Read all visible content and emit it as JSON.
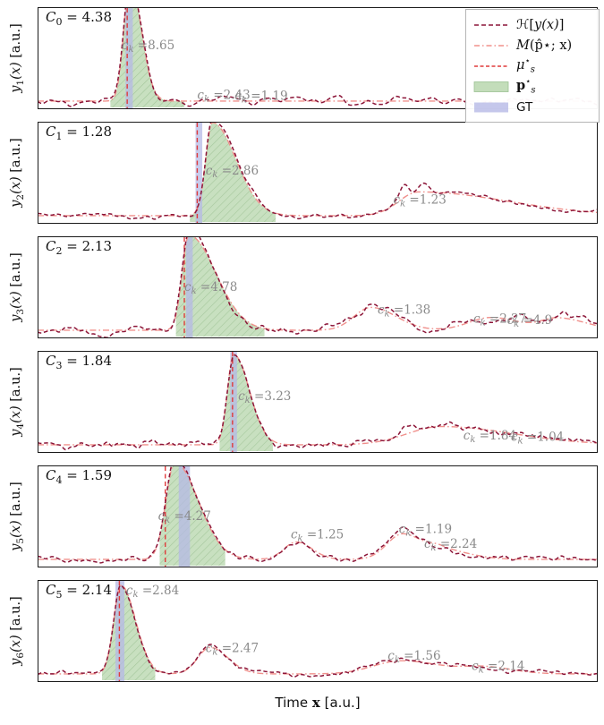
{
  "figure": {
    "xlabel": {
      "pre": "Time ",
      "var": "x",
      "post": " [a.u.]"
    }
  },
  "colors": {
    "signal": "#8c1538",
    "model": "#f0908c",
    "mu": "#e03b3b",
    "region_fill": "#b9d7ae",
    "region_hatch": "#9cc193",
    "gt": "#b6b9e6",
    "annotation": "#8a8a8a",
    "frame": "#1a1a1a",
    "legend_border": "#b5b5b5"
  },
  "legend": {
    "items": [
      {
        "name": "signal",
        "pre": "ℋ[",
        "var": "y(x)",
        "post": "]"
      },
      {
        "name": "model",
        "var": "M",
        "rest": "(p̂⋆; x)"
      },
      {
        "name": "mu",
        "base": "μ",
        "sup": "⋆",
        "sub": "s"
      },
      {
        "name": "region",
        "base": "p",
        "sup": "⋆",
        "sub": "s"
      },
      {
        "name": "gt",
        "label": "GT"
      }
    ]
  },
  "chart_data": {
    "type": "line",
    "x_range": [
      0,
      1
    ],
    "grid": false,
    "panels": [
      {
        "ylabel": "y1(x) [a.u.]",
        "ylabel_parts": {
          "var": "y",
          "sub": "1",
          "args": "(x)",
          "unit": " [a.u.]"
        },
        "constant_label": "C0 = 4.38",
        "clabel_parts": {
          "var": "C",
          "sub": "0",
          "value": " = 4.38"
        },
        "baseline": 0.03,
        "peaks": [
          {
            "c": 0.165,
            "h": 1.32,
            "wl": 0.011,
            "wr": 0.02
          }
        ],
        "extra": [
          {
            "c": 0.332,
            "h": 0.045,
            "wl": 0.012,
            "wr": 0.012
          },
          {
            "c": 0.405,
            "h": 0.03,
            "wl": 0.01,
            "wr": 0.01
          },
          {
            "c": 0.455,
            "h": 0.038,
            "wl": 0.009,
            "wr": 0.009
          },
          {
            "c": 0.53,
            "h": 0.03,
            "wl": 0.01,
            "wr": 0.01
          }
        ],
        "noise": {
          "seed": 11,
          "amp": 0.018
        },
        "region": [
          0.13,
          0.262
        ],
        "gt": [
          0.157,
          0.17
        ],
        "mu": 0.16,
        "annotations": [
          {
            "x": 0.15,
            "y": 0.6,
            "text": "=8.65"
          },
          {
            "x": 0.285,
            "y": 0.055,
            "text": "=2.43"
          },
          {
            "x": 0.352,
            "y": 0.045,
            "text": "=1.19"
          }
        ]
      },
      {
        "ylabel": "y2(x) [a.u.]",
        "ylabel_parts": {
          "var": "y",
          "sub": "2",
          "args": "(x)",
          "unit": " [a.u.]"
        },
        "constant_label": "C1 = 1.28",
        "clabel_parts": {
          "var": "C",
          "sub": "1",
          "value": " = 1.28"
        },
        "baseline": 0.03,
        "peaks": [
          {
            "c": 0.312,
            "h": 1.02,
            "wl": 0.012,
            "wr": 0.042
          },
          {
            "c": 0.68,
            "h": 0.26,
            "wl": 0.035,
            "wr": 0.16
          }
        ],
        "extra": [
          {
            "c": 0.655,
            "h": 0.13,
            "wl": 0.008,
            "wr": 0.008
          },
          {
            "c": 0.69,
            "h": 0.1,
            "wl": 0.009,
            "wr": 0.009
          },
          {
            "c": 0.31,
            "h": 0.05,
            "wl": 0.006,
            "wr": 0.02
          }
        ],
        "noise": {
          "seed": 22,
          "amp": 0.016
        },
        "region": [
          0.272,
          0.425
        ],
        "gt": [
          0.282,
          0.294
        ],
        "mu": 0.285,
        "annotations": [
          {
            "x": 0.3,
            "y": 0.48,
            "text": "=2.86"
          },
          {
            "x": 0.635,
            "y": 0.16,
            "text": "=1.23"
          }
        ]
      },
      {
        "ylabel": "y3(x) [a.u.]",
        "ylabel_parts": {
          "var": "y",
          "sub": "3",
          "args": "(x)",
          "unit": " [a.u.]"
        },
        "constant_label": "C2 = 2.13",
        "clabel_parts": {
          "var": "C",
          "sub": "2",
          "value": " = 2.13"
        },
        "baseline": 0.03,
        "peaks": [
          {
            "c": 0.27,
            "h": 1.04,
            "wl": 0.012,
            "wr": 0.048
          },
          {
            "c": 0.595,
            "h": 0.25,
            "wl": 0.03,
            "wr": 0.045
          },
          {
            "c": 0.81,
            "h": 0.14,
            "wl": 0.04,
            "wr": 0.05
          },
          {
            "c": 0.93,
            "h": 0.13,
            "wl": 0.03,
            "wr": 0.05
          }
        ],
        "extra": [
          {
            "c": 0.6,
            "h": 0.06,
            "wl": 0.01,
            "wr": 0.01
          },
          {
            "c": 0.865,
            "h": 0.05,
            "wl": 0.008,
            "wr": 0.008
          },
          {
            "c": 0.935,
            "h": 0.05,
            "wl": 0.007,
            "wr": 0.007
          }
        ],
        "noise": {
          "seed": 33,
          "amp": 0.018
        },
        "region": [
          0.247,
          0.405
        ],
        "gt": [
          0.265,
          0.277
        ],
        "mu": 0.262,
        "annotations": [
          {
            "x": 0.262,
            "y": 0.46,
            "text": "=4.78"
          },
          {
            "x": 0.607,
            "y": 0.21,
            "text": "=1.38"
          },
          {
            "x": 0.778,
            "y": 0.115,
            "text": "=2.27"
          },
          {
            "x": 0.838,
            "y": 0.1,
            "text": "=4.9"
          }
        ]
      },
      {
        "ylabel": "y4(x) [a.u.]",
        "ylabel_parts": {
          "var": "y",
          "sub": "4",
          "args": "(x)",
          "unit": " [a.u.]"
        },
        "constant_label": "C3 = 1.84",
        "clabel_parts": {
          "var": "C",
          "sub": "3",
          "value": " = 1.84"
        },
        "baseline": 0.03,
        "peaks": [
          {
            "c": 0.35,
            "h": 0.99,
            "wl": 0.011,
            "wr": 0.028
          },
          {
            "c": 0.72,
            "h": 0.2,
            "wl": 0.06,
            "wr": 0.13
          }
        ],
        "extra": [
          {
            "c": 0.665,
            "h": 0.07,
            "wl": 0.012,
            "wr": 0.012
          },
          {
            "c": 0.74,
            "h": 0.06,
            "wl": 0.012,
            "wr": 0.012
          },
          {
            "c": 0.13,
            "h": 0.03,
            "wl": 0.015,
            "wr": 0.015
          },
          {
            "c": 0.2,
            "h": 0.025,
            "wl": 0.01,
            "wr": 0.01
          }
        ],
        "noise": {
          "seed": 44,
          "amp": 0.02
        },
        "region": [
          0.325,
          0.42
        ],
        "gt": [
          0.344,
          0.356
        ],
        "mu": 0.348,
        "annotations": [
          {
            "x": 0.358,
            "y": 0.52,
            "text": "=3.23"
          },
          {
            "x": 0.76,
            "y": 0.09,
            "text": "=1.84"
          },
          {
            "x": 0.845,
            "y": 0.075,
            "text": "=1.04"
          }
        ]
      },
      {
        "ylabel": "y5(x) [a.u.]",
        "ylabel_parts": {
          "var": "y",
          "sub": "5",
          "args": "(x)",
          "unit": " [a.u.]"
        },
        "constant_label": "C4 = 1.59",
        "clabel_parts": {
          "var": "C",
          "sub": "4",
          "value": " = 1.59"
        },
        "baseline": 0.03,
        "peaks": [
          {
            "c": 0.245,
            "h": 1.06,
            "wl": 0.016,
            "wr": 0.042
          },
          {
            "c": 0.462,
            "h": 0.19,
            "wl": 0.022,
            "wr": 0.028
          },
          {
            "c": 0.652,
            "h": 0.28,
            "wl": 0.028,
            "wr": 0.038
          },
          {
            "c": 0.72,
            "h": 0.1,
            "wl": 0.02,
            "wr": 0.05
          }
        ],
        "extra": [
          {
            "c": 0.245,
            "h": 0.05,
            "wl": 0.008,
            "wr": 0.015
          },
          {
            "c": 0.655,
            "h": 0.04,
            "wl": 0.01,
            "wr": 0.01
          }
        ],
        "noise": {
          "seed": 55,
          "amp": 0.017
        },
        "region": [
          0.218,
          0.335
        ],
        "gt": [
          0.252,
          0.272
        ],
        "mu": 0.228,
        "annotations": [
          {
            "x": 0.215,
            "y": 0.46,
            "text": "=4.27"
          },
          {
            "x": 0.452,
            "y": 0.26,
            "text": "=1.25"
          },
          {
            "x": 0.645,
            "y": 0.32,
            "text": "=1.19"
          },
          {
            "x": 0.69,
            "y": 0.155,
            "text": "=2.24"
          }
        ]
      },
      {
        "ylabel": "y6(x) [a.u.]",
        "ylabel_parts": {
          "var": "y",
          "sub": "6",
          "args": "(x)",
          "unit": " [a.u.]"
        },
        "constant_label": "C5 = 2.14",
        "clabel_parts": {
          "var": "C",
          "sub": "5",
          "value": " = 2.14"
        },
        "baseline": 0.03,
        "peaks": [
          {
            "c": 0.149,
            "h": 0.97,
            "wl": 0.013,
            "wr": 0.026
          },
          {
            "c": 0.308,
            "h": 0.29,
            "wl": 0.022,
            "wr": 0.032
          },
          {
            "c": 0.65,
            "h": 0.145,
            "wl": 0.05,
            "wr": 0.07
          },
          {
            "c": 0.8,
            "h": 0.07,
            "wl": 0.04,
            "wr": 0.05
          }
        ],
        "extra": [
          {
            "c": 0.31,
            "h": 0.05,
            "wl": 0.009,
            "wr": 0.009
          },
          {
            "c": 0.66,
            "h": 0.03,
            "wl": 0.012,
            "wr": 0.012
          }
        ],
        "noise": {
          "seed": 66,
          "amp": 0.016
        },
        "region": [
          0.115,
          0.21
        ],
        "gt": [
          0.139,
          0.155
        ],
        "mu": 0.146,
        "annotations": [
          {
            "x": 0.158,
            "y": 0.9,
            "text": "=2.84"
          },
          {
            "x": 0.3,
            "y": 0.27,
            "text": "=2.47"
          },
          {
            "x": 0.625,
            "y": 0.185,
            "text": "=1.56"
          },
          {
            "x": 0.775,
            "y": 0.075,
            "text": "=2.14"
          }
        ]
      }
    ]
  }
}
